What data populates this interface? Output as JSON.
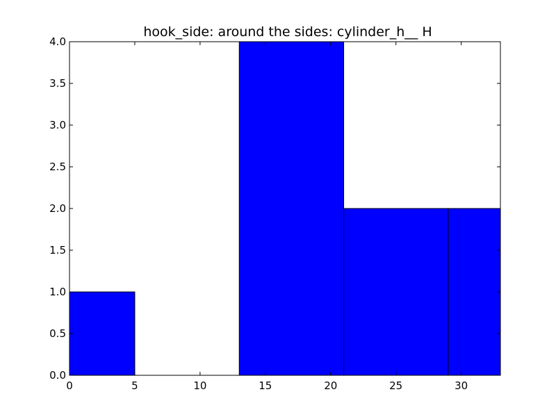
{
  "chart_data": {
    "type": "bar",
    "title": "hook_side: around the sides: cylinder_h__ H",
    "xlabel": "",
    "ylabel": "",
    "xlim": [
      0,
      33
    ],
    "ylim": [
      0,
      4.0
    ],
    "grid": false,
    "bins": [
      {
        "x0": 0,
        "x1": 5,
        "value": 1
      },
      {
        "x0": 5,
        "x1": 13,
        "value": 0
      },
      {
        "x0": 13,
        "x1": 21,
        "value": 4
      },
      {
        "x0": 21,
        "x1": 29,
        "value": 2
      },
      {
        "x0": 29,
        "x1": 33,
        "value": 2
      }
    ],
    "xticks": [
      0,
      5,
      10,
      15,
      20,
      25,
      30
    ],
    "xtick_labels": [
      "0",
      "5",
      "10",
      "15",
      "20",
      "25",
      "30"
    ],
    "yticks": [
      0,
      0.5,
      1.0,
      1.5,
      2.0,
      2.5,
      3.0,
      3.5,
      4.0
    ],
    "ytick_labels": [
      "0.0",
      "0.5",
      "1.0",
      "1.5",
      "2.0",
      "2.5",
      "3.0",
      "3.5",
      "4.0"
    ],
    "bar_color": "#0000ff",
    "edge_color": "#000000"
  }
}
